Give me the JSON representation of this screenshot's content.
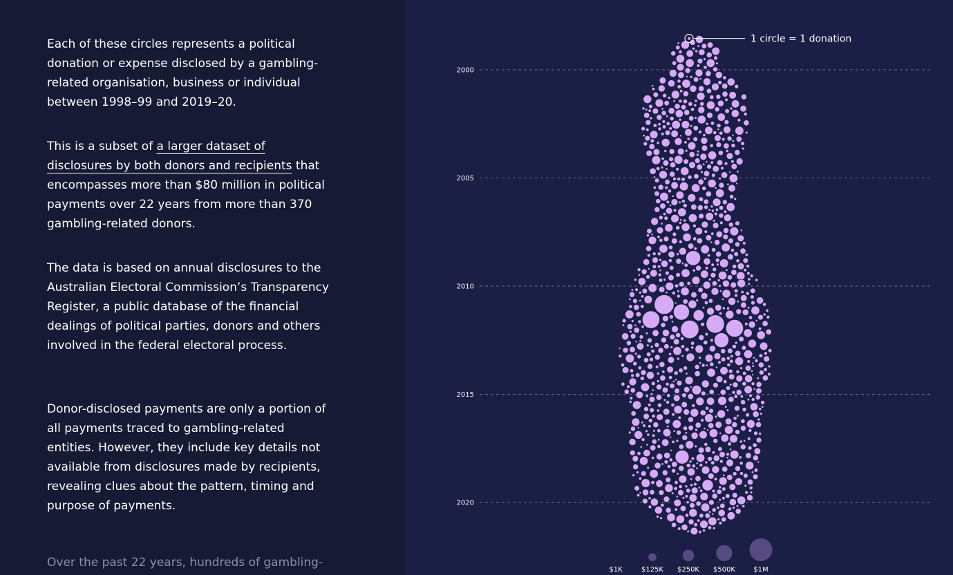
{
  "story": {
    "paragraphs": [
      {
        "text": "Each of these circles represents a political donation or expense disclosed by a gambling-related organisation, business or individual between 1998–99 and 2019–20."
      },
      {
        "before": "This is a subset of ",
        "link": "a larger dataset of disclosures by both donors and recipients",
        "after": " that encompasses more than $80 million in political payments over 22 years from more than 370 gambling-related donors."
      },
      {
        "text": "The data is based on annual disclosures to the Australian Electoral Commission’s Transparency Register, a public database of the financial dealings of political parties, donors and others involved in the federal electoral process."
      },
      {
        "text": "Donor-disclosed payments are only a portion of all payments traced to gambling-related entities. However, they include key details not available from disclosures made by recipients, revealing clues about the pattern, timing and purpose of payments."
      },
      {
        "text": "Over the past 22 years, hundreds of gambling-"
      }
    ]
  },
  "colors": {
    "background": "#1b1f45",
    "panel": "#161a34",
    "circle_fill": "#d6aaf7",
    "circle_stroke": "#1b1f45",
    "legend_fill": "#564a82",
    "grid": "#6d7092"
  },
  "chart_data": {
    "type": "scatter",
    "subtype": "beeswarm",
    "title": "",
    "xlabel": "",
    "ylabel": "",
    "y_axis": {
      "ticks": [
        2000,
        2005,
        2010,
        2015,
        2020
      ],
      "range": [
        1998.5,
        2021.4
      ],
      "grid": "dashed"
    },
    "annotation": "1 circle = 1 donation",
    "size_legend": [
      {
        "label": "$1K",
        "value": 1000
      },
      {
        "label": "$125K",
        "value": 125000
      },
      {
        "label": "$250K",
        "value": 250000
      },
      {
        "label": "$500K",
        "value": 500000
      },
      {
        "label": "$1M",
        "value": 1000000
      }
    ],
    "swarm_half_width_by_year": [
      [
        1998.5,
        7
      ],
      [
        1998.8,
        28
      ],
      [
        1999.3,
        38
      ],
      [
        1999.9,
        32
      ],
      [
        2000.3,
        40
      ],
      [
        2000.6,
        62
      ],
      [
        2001.3,
        75
      ],
      [
        2002.5,
        78
      ],
      [
        2003.5,
        76
      ],
      [
        2004.3,
        68
      ],
      [
        2005.5,
        60
      ],
      [
        2006.5,
        60
      ],
      [
        2007.5,
        70
      ],
      [
        2008.5,
        76
      ],
      [
        2009.3,
        84
      ],
      [
        2010.0,
        94
      ],
      [
        2011.3,
        108
      ],
      [
        2012.5,
        112
      ],
      [
        2013.5,
        110
      ],
      [
        2014.5,
        108
      ],
      [
        2015.5,
        100
      ],
      [
        2016.5,
        96
      ],
      [
        2017.8,
        96
      ],
      [
        2019.0,
        90
      ],
      [
        2019.8,
        84
      ],
      [
        2020.3,
        70
      ],
      [
        2020.8,
        50
      ],
      [
        2021.2,
        28
      ],
      [
        2021.4,
        5
      ]
    ],
    "large_donations": [
      {
        "year": 2010.85,
        "value": 750000
      },
      {
        "year": 2012.0,
        "value": 650000
      },
      {
        "year": 2011.2,
        "value": 500000
      },
      {
        "year": 2011.75,
        "value": 650000
      },
      {
        "year": 2011.55,
        "value": 600000
      },
      {
        "year": 2011.95,
        "value": 600000
      },
      {
        "year": 2012.5,
        "value": 420000
      },
      {
        "year": 2008.7,
        "value": 430000
      },
      {
        "year": 2017.9,
        "value": 380000
      },
      {
        "year": 2019.2,
        "value": 250000
      },
      {
        "year": 2011.35,
        "value": 240000
      },
      {
        "year": 2014.8,
        "value": 180000
      },
      {
        "year": 2015.3,
        "value": 160000
      },
      {
        "year": 2009.4,
        "value": 150000
      },
      {
        "year": 2014.0,
        "value": 150000
      }
    ]
  }
}
